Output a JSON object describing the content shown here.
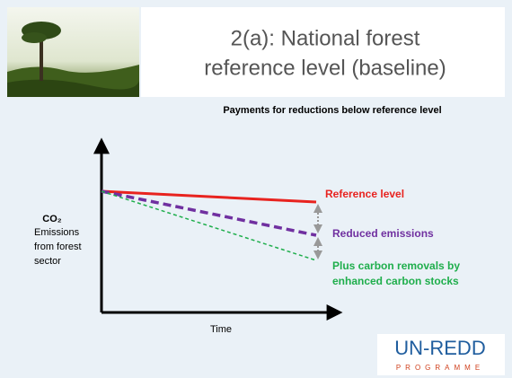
{
  "header": {
    "title_lines": [
      "2(a): National forest",
      "reference level (baseline)"
    ]
  },
  "diagram": {
    "subtitle": "Payments for reductions below reference level",
    "y_axis_label": {
      "symbol": "CO₂",
      "lines": [
        "Emissions",
        "from forest",
        "sector"
      ]
    },
    "x_axis_label": "Time",
    "lines": [
      {
        "label_lines": [
          "Reference level"
        ]
      },
      {
        "label_lines": [
          "Reduced emissions"
        ]
      },
      {
        "label_lines": [
          "Plus carbon removals by",
          "enhanced carbon stocks"
        ]
      }
    ]
  },
  "logo": {
    "name": "UN-REDD",
    "tagline": "PROGRAMME"
  }
}
